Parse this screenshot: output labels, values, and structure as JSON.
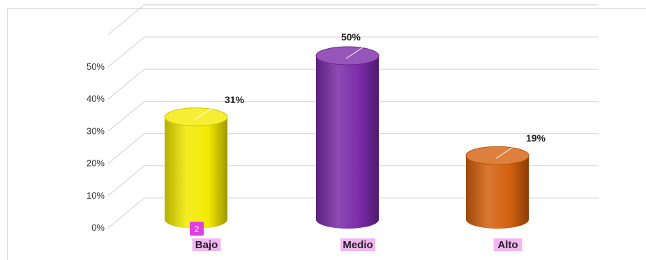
{
  "chart_data": {
    "type": "bar",
    "style": "3d-cylinder",
    "categories": [
      "Bajo",
      "Medio",
      "Alto"
    ],
    "values": [
      31,
      50,
      19
    ],
    "data_labels": [
      "31%",
      "50%",
      "19%"
    ],
    "y_ticks": [
      "0%",
      "10%",
      "20%",
      "30%",
      "40%",
      "50%"
    ],
    "ylim": [
      0,
      60
    ],
    "grid": true,
    "legend": "none",
    "colors": [
      "#f2ea00",
      "#7a2aa8",
      "#d4600e"
    ],
    "category_label_highlight": "#f2b6f2"
  },
  "marker": {
    "label": "2",
    "color": "#e040e0"
  }
}
